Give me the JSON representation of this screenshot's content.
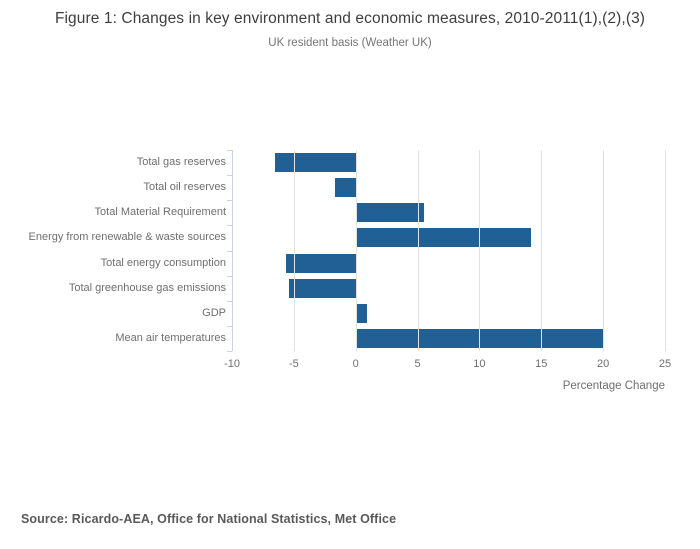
{
  "header": {
    "title": "Figure 1: Changes in key environment and economic measures, 2010-2011(1),(2),(3)",
    "subtitle": "UK resident basis (Weather UK)"
  },
  "footer": {
    "source": "Source: Ricardo-AEA, Office for National Statistics, Met Office"
  },
  "colors": {
    "bar": "#206095",
    "gridline": "#e0e2e4",
    "axis_line": "#c9d2e6",
    "label_text": "#6f6f6f"
  },
  "chart_data": {
    "type": "bar",
    "orientation": "horizontal",
    "title": "Figure 1: Changes in key environment and economic measures, 2010-2011(1),(2),(3)",
    "subtitle": "UK resident basis (Weather UK)",
    "categories": [
      "Total gas reserves",
      "Total oil reserves",
      "Total Material Requirement",
      "Energy from renewable & waste sources",
      "Total energy consumption",
      "Total greenhouse gas emissions",
      "GDP",
      "Mean air temperatures"
    ],
    "values": [
      -6.5,
      -1.7,
      5.5,
      14.2,
      -5.6,
      -5.4,
      0.9,
      20
    ],
    "xlabel": "Percentage Change",
    "ylabel": "",
    "xlim": [
      -10,
      25
    ],
    "xticks": [
      -10,
      -5,
      0,
      5,
      10,
      15,
      20,
      25
    ],
    "grid": true,
    "legend": false,
    "bar_color": "#206095"
  }
}
